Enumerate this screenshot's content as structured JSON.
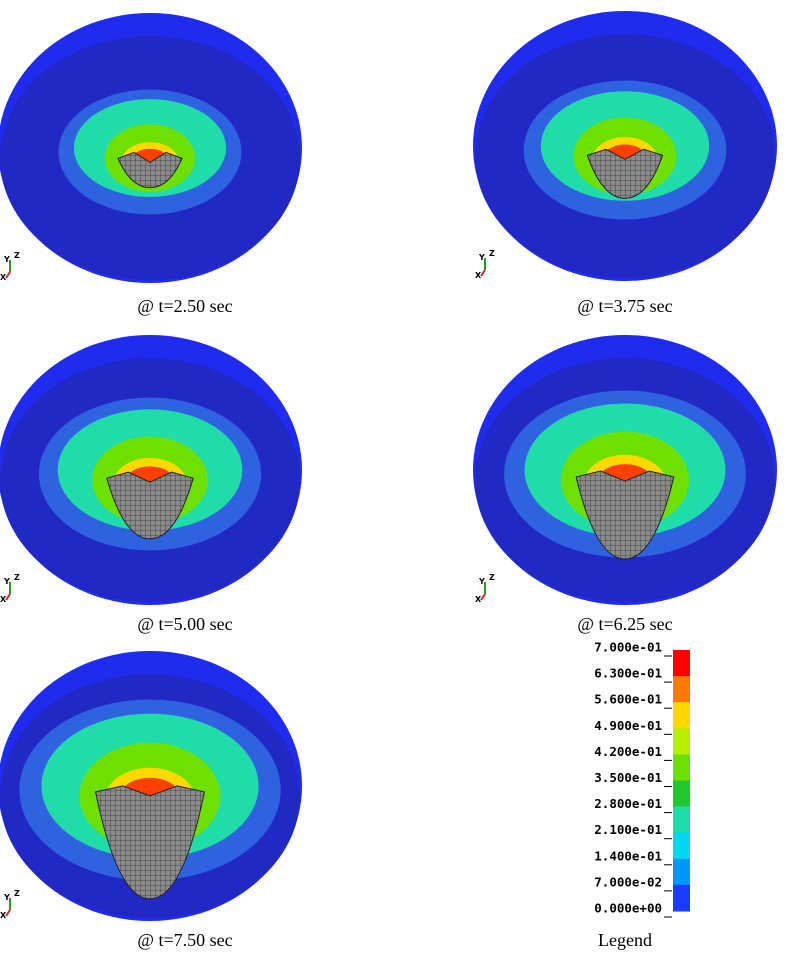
{
  "panels": [
    {
      "caption": "@ t=2.50 sec"
    },
    {
      "caption": "@ t=3.75 sec"
    },
    {
      "caption": "@ t=5.00 sec"
    },
    {
      "caption": "@ t=6.25 sec"
    },
    {
      "caption": "@ t=7.50 sec"
    }
  ],
  "triad": {
    "y": "Y",
    "z": "Z",
    "x": "X"
  },
  "legend": {
    "title": "Legend",
    "labels": [
      "7.000e-01",
      "6.300e-01",
      "5.600e-01",
      "4.900e-01",
      "4.200e-01",
      "3.500e-01",
      "2.800e-01",
      "2.100e-01",
      "1.400e-01",
      "7.000e-02",
      "0.000e+00"
    ],
    "colors": [
      "#ff0000",
      "#ff7a00",
      "#ffd800",
      "#b8ee00",
      "#6ee000",
      "#22c832",
      "#20dca8",
      "#00d8f0",
      "#0096ff",
      "#1a3cff"
    ]
  }
}
